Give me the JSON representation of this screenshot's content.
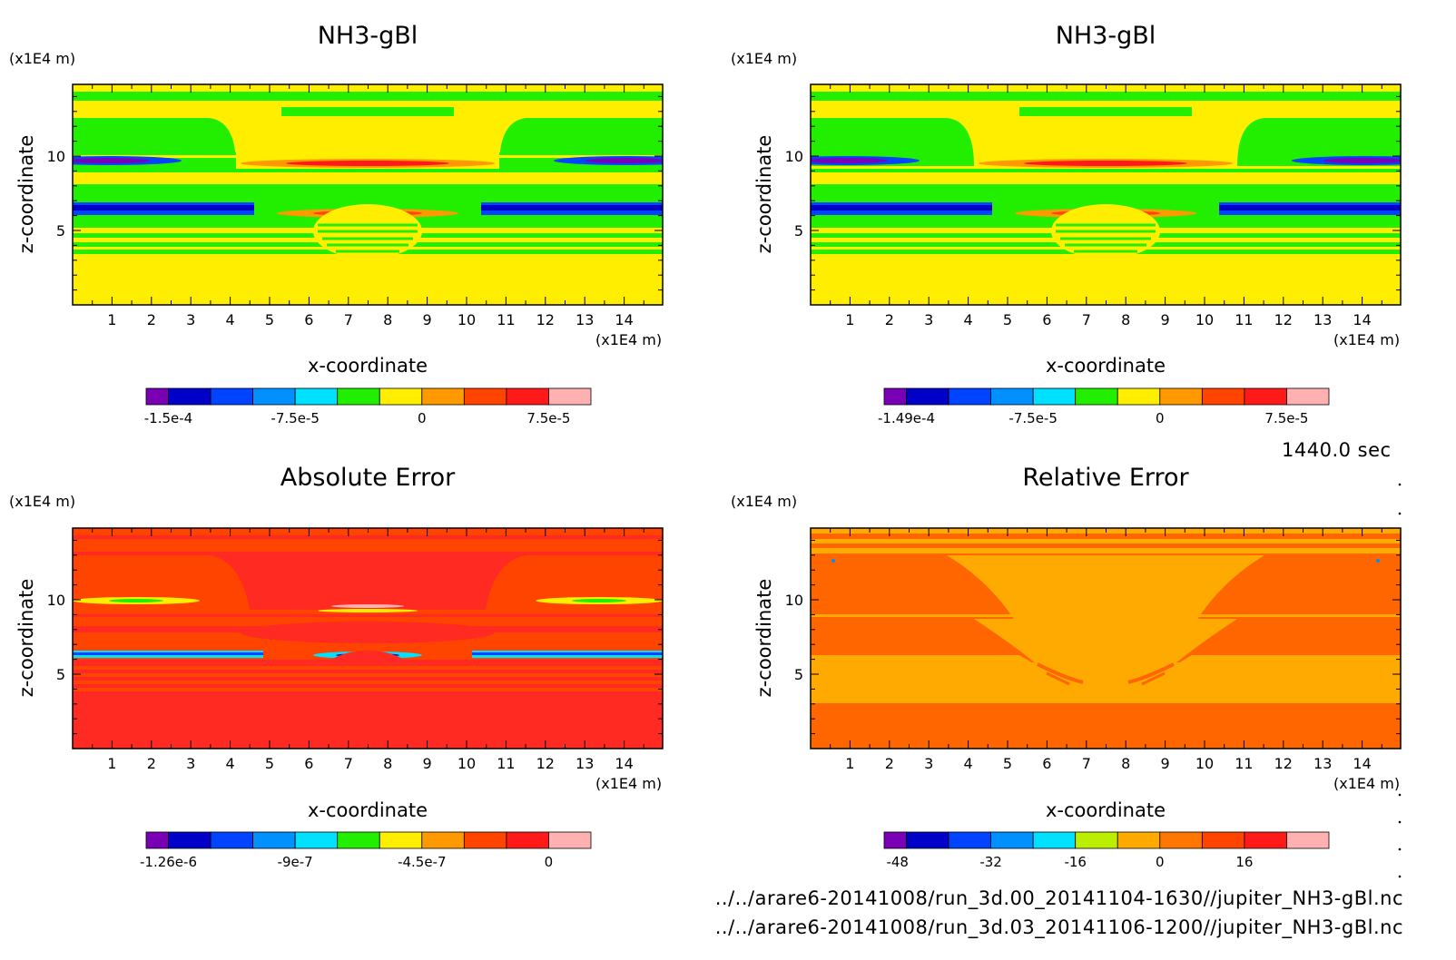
{
  "panels": [
    {
      "title": "NH3-gBl",
      "z_unit": "(x1E4 m)",
      "x_unit": "(x1E4 m)",
      "xlabel": "x-coordinate",
      "ylabel": "z-coordinate",
      "colorbar_labels": [
        "-1.5e-4",
        "-7.5e-5",
        "0",
        "7.5e-5"
      ],
      "colorbar_colors": [
        "#7a00b5",
        "#0000c8",
        "#0044ff",
        "#0090ff",
        "#00e0ff",
        "#22ee00",
        "#ffee00",
        "#ff9900",
        "#ff4400",
        "#ff1a1a",
        "#ffb0b0"
      ]
    },
    {
      "title": "NH3-gBl",
      "z_unit": "(x1E4 m)",
      "x_unit": "(x1E4 m)",
      "xlabel": "x-coordinate",
      "ylabel": "z-coordinate",
      "colorbar_labels": [
        "-1.49e-4",
        "-7.5e-5",
        "0",
        "7.5e-5"
      ],
      "colorbar_colors": [
        "#7a00b5",
        "#0000c8",
        "#0044ff",
        "#0090ff",
        "#00e0ff",
        "#22ee00",
        "#ffee00",
        "#ff9900",
        "#ff4400",
        "#ff1a1a",
        "#ffb0b0"
      ]
    },
    {
      "title": "Absolute Error",
      "z_unit": "(x1E4 m)",
      "x_unit": "(x1E4 m)",
      "xlabel": "x-coordinate",
      "ylabel": "z-coordinate",
      "colorbar_labels": [
        "-1.26e-6",
        "-9e-7",
        "-4.5e-7",
        "0"
      ],
      "colorbar_colors": [
        "#7a00b5",
        "#0000c8",
        "#0044ff",
        "#0090ff",
        "#00e0ff",
        "#22ee00",
        "#ffee00",
        "#ff9900",
        "#ff4400",
        "#ff1a1a",
        "#ffb0b0"
      ]
    },
    {
      "title": "Relative Error",
      "z_unit": "(x1E4 m)",
      "x_unit": "(x1E4 m)",
      "xlabel": "x-coordinate",
      "ylabel": "z-coordinate",
      "colorbar_labels": [
        "-48",
        "-32",
        "-16",
        "0",
        "16"
      ],
      "colorbar_colors": [
        "#7a00b5",
        "#0000c8",
        "#0044ff",
        "#0090ff",
        "#00e0ff",
        "#bbee00",
        "#ffaa00",
        "#ff7700",
        "#ff4400",
        "#ff1a1a",
        "#ffb0b0"
      ]
    }
  ],
  "time_label": "1440.0 sec",
  "file_1": "../../arare6-20141008/run_3d.00_20141104-1630//jupiter_NH3-gBl.nc",
  "file_2": "../../arare6-20141008/run_3d.03_20141106-1200//jupiter_NH3-gBl.nc",
  "chart_data": [
    {
      "type": "heatmap",
      "title": "NH3-gBl",
      "xlabel": "x-coordinate",
      "ylabel": "z-coordinate",
      "x_ticks": [
        1,
        2,
        3,
        4,
        5,
        6,
        7,
        8,
        9,
        10,
        11,
        12,
        13,
        14
      ],
      "z_ticks": [
        5,
        10
      ],
      "xlim": [
        0,
        14.8
      ],
      "zlim": [
        0,
        14.8
      ],
      "colorbar": [
        "-1.5e-4",
        "-7.5e-5",
        "0",
        "7.5e-5"
      ],
      "background": "#ffee00"
    },
    {
      "type": "heatmap",
      "title": "NH3-gBl",
      "xlabel": "x-coordinate",
      "ylabel": "z-coordinate",
      "x_ticks": [
        1,
        2,
        3,
        4,
        5,
        6,
        7,
        8,
        9,
        10,
        11,
        12,
        13,
        14
      ],
      "z_ticks": [
        5,
        10
      ],
      "xlim": [
        0,
        14.8
      ],
      "zlim": [
        0,
        14.8
      ],
      "colorbar": [
        "-1.49e-4",
        "-7.5e-5",
        "0",
        "7.5e-5"
      ],
      "background": "#ffee00"
    },
    {
      "type": "heatmap",
      "title": "Absolute Error",
      "xlabel": "x-coordinate",
      "ylabel": "z-coordinate",
      "x_ticks": [
        1,
        2,
        3,
        4,
        5,
        6,
        7,
        8,
        9,
        10,
        11,
        12,
        13,
        14
      ],
      "z_ticks": [
        5,
        10
      ],
      "xlim": [
        0,
        14.8
      ],
      "zlim": [
        0,
        14.8
      ],
      "colorbar": [
        "-1.26e-6",
        "-9e-7",
        "-4.5e-7",
        "0"
      ],
      "background": "#ff2a22"
    },
    {
      "type": "heatmap",
      "title": "Relative Error",
      "xlabel": "x-coordinate",
      "ylabel": "z-coordinate",
      "x_ticks": [
        1,
        2,
        3,
        4,
        5,
        6,
        7,
        8,
        9,
        10,
        11,
        12,
        13,
        14
      ],
      "z_ticks": [
        5,
        10
      ],
      "xlim": [
        0,
        14.8
      ],
      "zlim": [
        0,
        14.8
      ],
      "colorbar": [
        "-48",
        "-32",
        "-16",
        "0",
        "16"
      ],
      "background": "#ff6600"
    }
  ]
}
